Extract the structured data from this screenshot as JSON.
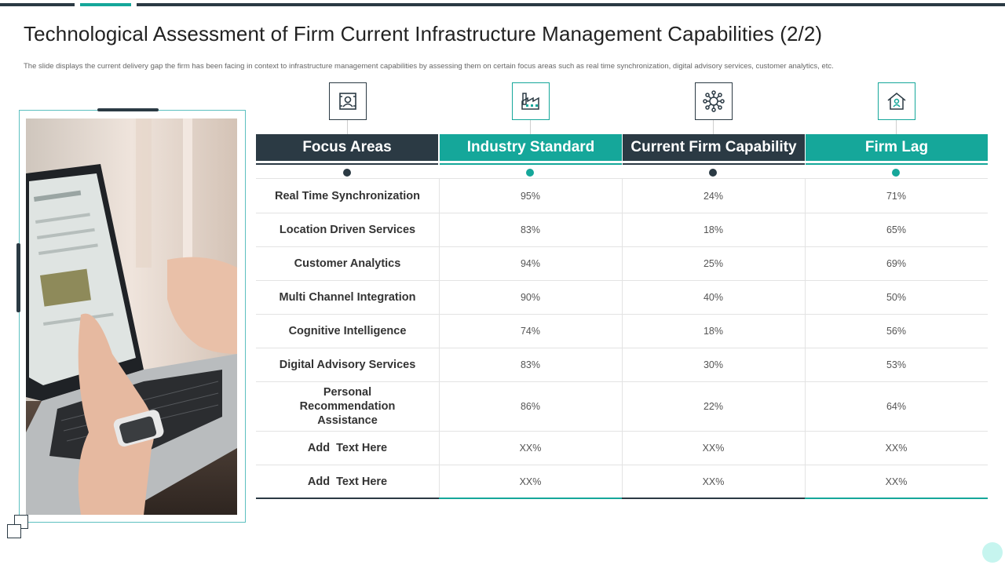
{
  "title": "Technological Assessment of Firm Current Infrastructure Management Capabilities (2/2)",
  "subtitle": "The slide displays the current delivery gap the firm has been facing in context to infrastructure management capabilities by assessing them on certain focus areas such as real time synchronization, digital advisory services, customer analytics, etc.",
  "colors": {
    "dark": "#2b3a44",
    "teal": "#15a79a"
  },
  "table": {
    "columns": [
      {
        "label": "Focus Areas",
        "icon": "portrait-frame-icon"
      },
      {
        "label": "Industry Standard",
        "icon": "factory-icon"
      },
      {
        "label": "Current Firm Capability",
        "icon": "network-icon"
      },
      {
        "label": "Firm Lag",
        "icon": "home-user-icon"
      }
    ],
    "rows": [
      {
        "area": "Real Time Synchronization",
        "industry": "95%",
        "current": "24%",
        "lag": "71%"
      },
      {
        "area": "Location Driven Services",
        "industry": "83%",
        "current": "18%",
        "lag": "65%"
      },
      {
        "area": "Customer Analytics",
        "industry": "94%",
        "current": "25%",
        "lag": "69%"
      },
      {
        "area": "Multi Channel Integration",
        "industry": "90%",
        "current": "40%",
        "lag": "50%"
      },
      {
        "area": "Cognitive Intelligence",
        "industry": "74%",
        "current": "18%",
        "lag": "56%"
      },
      {
        "area": "Digital Advisory Services",
        "industry": "83%",
        "current": "30%",
        "lag": "53%"
      },
      {
        "area": "Personal Recommendation Assistance",
        "industry": "86%",
        "current": "22%",
        "lag": "64%"
      },
      {
        "area": "Add  Text Here",
        "industry": "XX%",
        "current": "XX%",
        "lag": "XX%"
      },
      {
        "area": "Add  Text Here",
        "industry": "XX%",
        "current": "XX%",
        "lag": "XX%"
      }
    ]
  }
}
